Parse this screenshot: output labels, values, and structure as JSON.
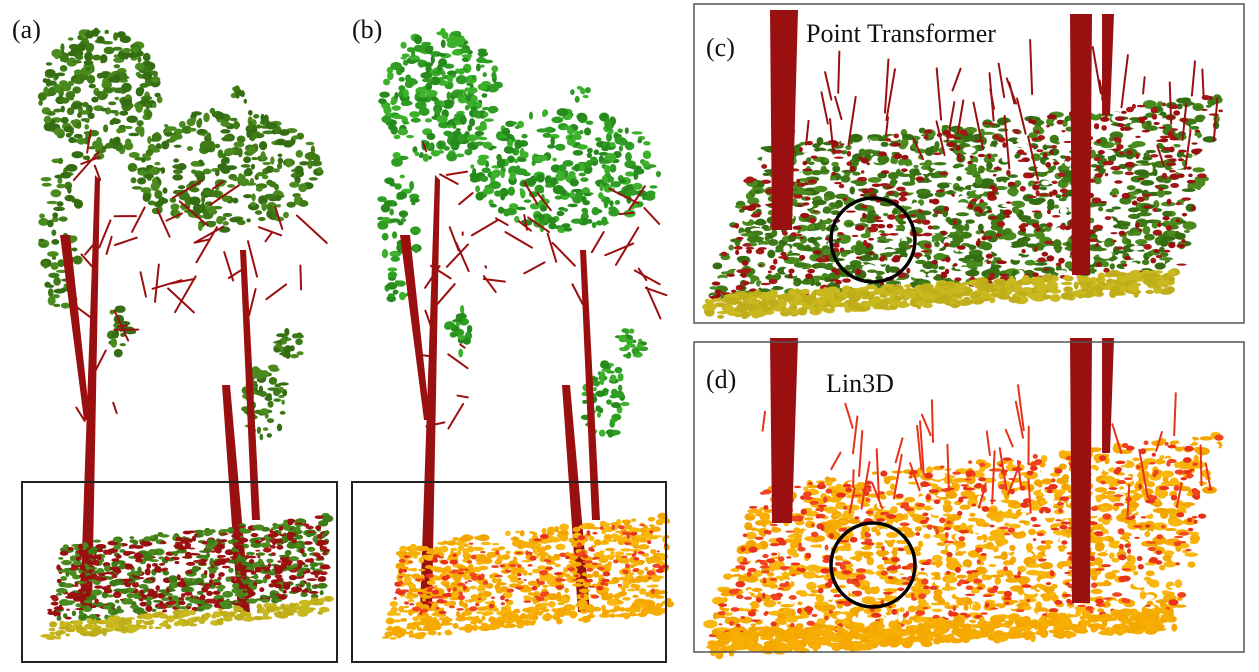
{
  "panels": [
    {
      "label": "(a)"
    },
    {
      "label": "(b)"
    },
    {
      "label": "(c)",
      "title": "Point Transformer"
    },
    {
      "label": "(d)",
      "title": "Lin3D"
    }
  ]
}
